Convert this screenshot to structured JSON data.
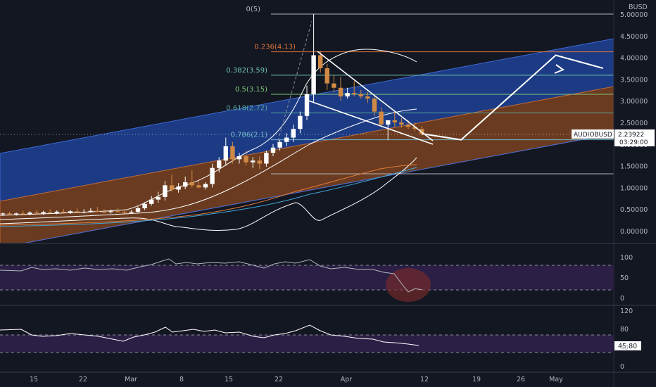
{
  "header": {
    "currency": "BUSD"
  },
  "symbol_tag": {
    "symbol": "AUDIOBUSD",
    "price": "2.23922",
    "countdown": "03:29:00"
  },
  "price_axis": {
    "ticks": [
      "5.00000",
      "4.50000",
      "4.00000",
      "3.50000",
      "3.00000",
      "2.50000",
      "2.00000",
      "1.50000",
      "1.00000",
      "0.50000",
      "0.00000"
    ]
  },
  "fib_levels": [
    {
      "label": "0(5)",
      "value": 5.0,
      "color": "#b2b5be"
    },
    {
      "label": "0.236(4.13)",
      "value": 4.13,
      "color": "#e0743a"
    },
    {
      "label": "0.382(3.59)",
      "value": 3.59,
      "color": "#6fc3b0"
    },
    {
      "label": "0.5(3.15)",
      "value": 3.15,
      "color": "#7ec87a"
    },
    {
      "label": "0.618(2.72)",
      "value": 2.72,
      "color": "#5aa89a"
    },
    {
      "label": "0.786(2.1)",
      "value": 2.1,
      "color": "#6fb9c9"
    }
  ],
  "time_axis": {
    "labels": [
      "15",
      "22",
      "Mar",
      "8",
      "15",
      "22",
      "Apr",
      "12",
      "19",
      "26",
      "May"
    ]
  },
  "rsi_panel": {
    "ticks": [
      "100",
      "50",
      "0"
    ]
  },
  "stoch_panel": {
    "ticks": [
      "120",
      "80",
      "40",
      "0"
    ],
    "value": "45.80"
  },
  "colors": {
    "background": "#131722",
    "up": "#ffffff",
    "down": "#d08a45",
    "upper_channel": "#1e3f8f",
    "lower_channel": "#8a4a22",
    "rsi_band": "#2b1f45"
  },
  "chart_data": {
    "type": "line",
    "ylim": [
      0,
      5
    ],
    "candles": [
      {
        "o": 0.38,
        "h": 0.42,
        "l": 0.34,
        "c": 0.4
      },
      {
        "o": 0.4,
        "h": 0.44,
        "l": 0.36,
        "c": 0.38
      },
      {
        "o": 0.38,
        "h": 0.42,
        "l": 0.35,
        "c": 0.4
      },
      {
        "o": 0.4,
        "h": 0.46,
        "l": 0.37,
        "c": 0.39
      },
      {
        "o": 0.39,
        "h": 0.45,
        "l": 0.36,
        "c": 0.42
      },
      {
        "o": 0.42,
        "h": 0.48,
        "l": 0.38,
        "c": 0.4
      },
      {
        "o": 0.4,
        "h": 0.46,
        "l": 0.37,
        "c": 0.43
      },
      {
        "o": 0.43,
        "h": 0.5,
        "l": 0.4,
        "c": 0.41
      },
      {
        "o": 0.41,
        "h": 0.47,
        "l": 0.38,
        "c": 0.44
      },
      {
        "o": 0.44,
        "h": 0.5,
        "l": 0.41,
        "c": 0.42
      },
      {
        "o": 0.42,
        "h": 0.48,
        "l": 0.39,
        "c": 0.45
      },
      {
        "o": 0.45,
        "h": 0.52,
        "l": 0.42,
        "c": 0.43
      },
      {
        "o": 0.43,
        "h": 0.5,
        "l": 0.4,
        "c": 0.44
      },
      {
        "o": 0.44,
        "h": 0.52,
        "l": 0.42,
        "c": 0.46
      },
      {
        "o": 0.46,
        "h": 0.55,
        "l": 0.43,
        "c": 0.44
      },
      {
        "o": 0.44,
        "h": 0.5,
        "l": 0.41,
        "c": 0.43
      },
      {
        "o": 0.43,
        "h": 0.49,
        "l": 0.4,
        "c": 0.45
      },
      {
        "o": 0.45,
        "h": 0.52,
        "l": 0.42,
        "c": 0.44
      },
      {
        "o": 0.44,
        "h": 0.5,
        "l": 0.4,
        "c": 0.42
      },
      {
        "o": 0.42,
        "h": 0.48,
        "l": 0.39,
        "c": 0.44
      },
      {
        "o": 0.44,
        "h": 0.56,
        "l": 0.42,
        "c": 0.52
      },
      {
        "o": 0.52,
        "h": 0.66,
        "l": 0.48,
        "c": 0.62
      },
      {
        "o": 0.62,
        "h": 0.8,
        "l": 0.58,
        "c": 0.72
      },
      {
        "o": 0.72,
        "h": 0.9,
        "l": 0.65,
        "c": 0.78
      },
      {
        "o": 0.78,
        "h": 1.15,
        "l": 0.7,
        "c": 1.05
      },
      {
        "o": 1.05,
        "h": 1.3,
        "l": 0.9,
        "c": 0.95
      },
      {
        "o": 0.95,
        "h": 1.1,
        "l": 0.88,
        "c": 1.02
      },
      {
        "o": 1.02,
        "h": 1.25,
        "l": 0.96,
        "c": 1.12
      },
      {
        "o": 1.12,
        "h": 1.4,
        "l": 1.0,
        "c": 1.05
      },
      {
        "o": 1.05,
        "h": 1.15,
        "l": 0.98,
        "c": 1.0
      },
      {
        "o": 1.0,
        "h": 1.12,
        "l": 0.95,
        "c": 1.08
      },
      {
        "o": 1.08,
        "h": 1.55,
        "l": 1.0,
        "c": 1.45
      },
      {
        "o": 1.45,
        "h": 1.7,
        "l": 1.35,
        "c": 1.62
      },
      {
        "o": 1.62,
        "h": 2.15,
        "l": 1.5,
        "c": 1.95
      },
      {
        "o": 1.95,
        "h": 2.05,
        "l": 1.55,
        "c": 1.65
      },
      {
        "o": 1.65,
        "h": 1.8,
        "l": 1.55,
        "c": 1.72
      },
      {
        "o": 1.72,
        "h": 1.85,
        "l": 1.5,
        "c": 1.58
      },
      {
        "o": 1.58,
        "h": 1.7,
        "l": 1.45,
        "c": 1.62
      },
      {
        "o": 1.62,
        "h": 1.72,
        "l": 1.42,
        "c": 1.55
      },
      {
        "o": 1.55,
        "h": 1.85,
        "l": 1.48,
        "c": 1.8
      },
      {
        "o": 1.8,
        "h": 2.0,
        "l": 1.72,
        "c": 1.92
      },
      {
        "o": 1.92,
        "h": 2.1,
        "l": 1.85,
        "c": 2.05
      },
      {
        "o": 2.05,
        "h": 2.25,
        "l": 1.95,
        "c": 2.15
      },
      {
        "o": 2.15,
        "h": 2.45,
        "l": 2.05,
        "c": 2.35
      },
      {
        "o": 2.35,
        "h": 2.75,
        "l": 2.25,
        "c": 2.65
      },
      {
        "o": 2.65,
        "h": 3.35,
        "l": 2.55,
        "c": 3.15
      },
      {
        "o": 3.15,
        "h": 5.0,
        "l": 2.95,
        "c": 4.05
      },
      {
        "o": 4.05,
        "h": 4.15,
        "l": 3.65,
        "c": 3.75
      },
      {
        "o": 3.75,
        "h": 3.85,
        "l": 3.25,
        "c": 3.4
      },
      {
        "o": 3.4,
        "h": 3.6,
        "l": 3.2,
        "c": 3.3
      },
      {
        "o": 3.3,
        "h": 3.55,
        "l": 3.0,
        "c": 3.1
      },
      {
        "o": 3.1,
        "h": 3.3,
        "l": 3.05,
        "c": 3.18
      },
      {
        "o": 3.18,
        "h": 3.45,
        "l": 3.1,
        "c": 3.15
      },
      {
        "o": 3.15,
        "h": 3.25,
        "l": 3.05,
        "c": 3.1
      },
      {
        "o": 3.1,
        "h": 3.2,
        "l": 2.95,
        "c": 3.05
      },
      {
        "o": 3.05,
        "h": 3.1,
        "l": 2.65,
        "c": 2.75
      },
      {
        "o": 2.75,
        "h": 2.85,
        "l": 2.4,
        "c": 2.45
      },
      {
        "o": 2.45,
        "h": 2.55,
        "l": 2.1,
        "c": 2.55
      },
      {
        "o": 2.55,
        "h": 2.75,
        "l": 2.4,
        "c": 2.5
      },
      {
        "o": 2.5,
        "h": 2.6,
        "l": 2.38,
        "c": 2.45
      },
      {
        "o": 2.45,
        "h": 2.55,
        "l": 2.35,
        "c": 2.4
      },
      {
        "o": 2.4,
        "h": 2.5,
        "l": 2.3,
        "c": 2.35
      },
      {
        "o": 2.35,
        "h": 2.42,
        "l": 2.2,
        "c": 2.24
      }
    ],
    "projection": [
      {
        "i": 62,
        "v": 2.24
      },
      {
        "i": 67,
        "v": 2.1
      },
      {
        "i": 81,
        "v": 4.05
      },
      {
        "i": 88,
        "v": 3.75
      }
    ]
  }
}
